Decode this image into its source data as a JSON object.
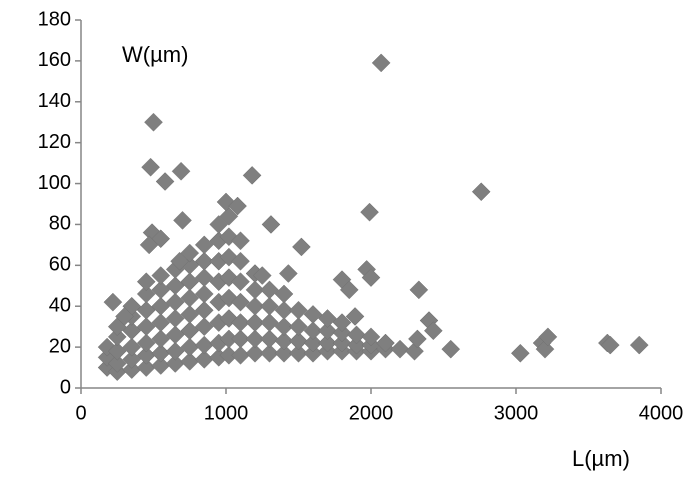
{
  "chart_data": {
    "type": "scatter",
    "x_label": "L(µm)",
    "y_label": "W(µm)",
    "color": "#7f7f7f",
    "xlim": [
      0,
      4000
    ],
    "ylim": [
      0,
      180
    ],
    "xticks": [
      0,
      1000,
      2000,
      3000,
      4000
    ],
    "yticks": [
      0,
      20,
      40,
      60,
      80,
      100,
      120,
      140,
      160,
      180
    ],
    "x": [
      180,
      180,
      180,
      250,
      250,
      250,
      250,
      250,
      350,
      350,
      350,
      350,
      350,
      350,
      450,
      450,
      450,
      450,
      450,
      450,
      450,
      550,
      550,
      550,
      550,
      550,
      550,
      550,
      650,
      650,
      650,
      650,
      650,
      650,
      650,
      750,
      750,
      750,
      750,
      750,
      750,
      750,
      750,
      850,
      850,
      850,
      850,
      850,
      850,
      850,
      850,
      950,
      950,
      950,
      950,
      950,
      950,
      950,
      950,
      1020,
      1020,
      1020,
      1020,
      1020,
      1020,
      1020,
      1020,
      1100,
      1100,
      1100,
      1100,
      1100,
      1100,
      1100,
      1200,
      1200,
      1200,
      1200,
      1200,
      1200,
      1300,
      1300,
      1300,
      1300,
      1300,
      1400,
      1400,
      1400,
      1400,
      1400,
      1500,
      1500,
      1500,
      1500,
      1600,
      1600,
      1600,
      1600,
      1700,
      1700,
      1700,
      1700,
      1800,
      1800,
      1800,
      1800,
      1900,
      1900,
      1900,
      2000,
      2000,
      2000,
      2100,
      2100,
      2200,
      500,
      480,
      690,
      580,
      1180,
      2070,
      2760,
      1990,
      1000,
      1080,
      700,
      1310,
      490,
      550,
      470,
      1520,
      680,
      1970,
      1250,
      1430,
      1800,
      2000,
      2330,
      2400,
      2430,
      3030,
      3180,
      3200,
      3220,
      3630,
      3650,
      3850,
      2300,
      2550,
      2320,
      1890,
      1850,
      220,
      300
    ],
    "values": [
      10,
      15,
      20,
      8,
      12,
      18,
      25,
      30,
      9,
      14,
      20,
      28,
      35,
      40,
      10,
      16,
      22,
      30,
      38,
      46,
      52,
      11,
      17,
      24,
      32,
      40,
      48,
      55,
      12,
      18,
      26,
      34,
      42,
      50,
      58,
      13,
      20,
      28,
      36,
      44,
      52,
      60,
      66,
      14,
      21,
      30,
      38,
      46,
      54,
      62,
      70,
      15,
      22,
      32,
      42,
      52,
      62,
      72,
      80,
      16,
      24,
      34,
      44,
      54,
      64,
      74,
      84,
      16,
      24,
      32,
      42,
      52,
      62,
      72,
      17,
      24,
      32,
      40,
      48,
      56,
      17,
      24,
      32,
      40,
      48,
      17,
      23,
      30,
      38,
      46,
      17,
      23,
      30,
      38,
      17,
      22,
      28,
      36,
      18,
      22,
      28,
      34,
      18,
      22,
      27,
      32,
      18,
      21,
      26,
      18,
      21,
      25,
      19,
      22,
      19,
      130,
      108,
      106,
      101,
      104,
      159,
      96,
      86,
      91,
      89,
      82,
      80,
      76,
      73,
      70,
      69,
      62,
      58,
      55,
      56,
      53,
      54,
      48,
      33,
      28,
      17,
      22,
      19,
      25,
      22,
      21,
      21,
      18,
      19,
      24,
      35,
      48,
      42,
      35
    ]
  }
}
